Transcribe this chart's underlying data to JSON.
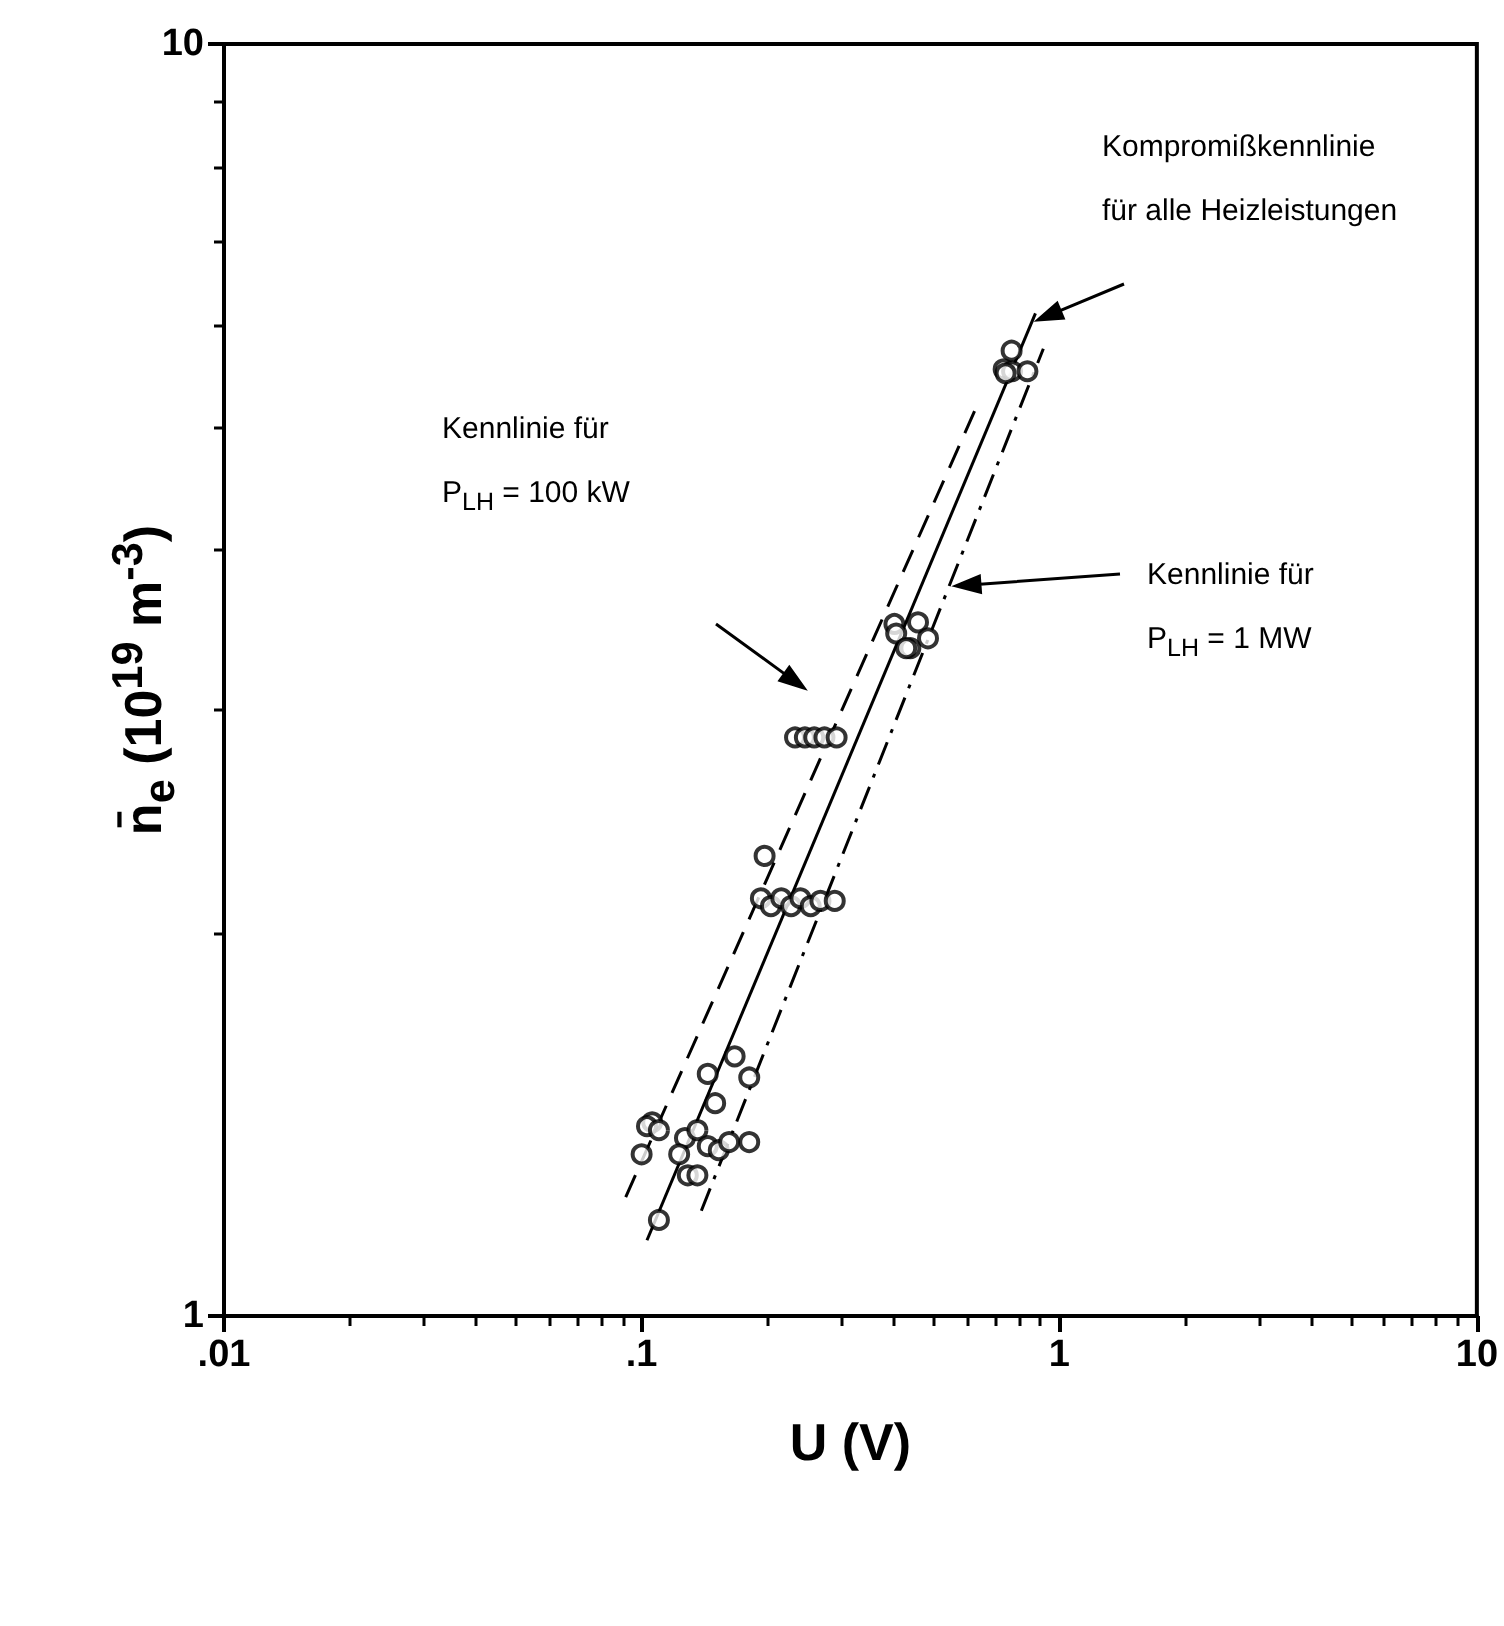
{
  "chart_data": {
    "type": "scatter",
    "xlabel": "U (V)",
    "ylabel": "n̄$_{e}$ (10$^{19}$ m$^{-3}$)",
    "log": "xy",
    "grid": false,
    "xlim": [
      0.01,
      10
    ],
    "xticks": [
      {
        "value": 0.01,
        "label": ".01"
      },
      {
        "value": 0.1,
        "label": ".1"
      },
      1,
      10
    ],
    "ylim": [
      1,
      10
    ],
    "yticks": [
      1,
      10
    ],
    "series": [
      {
        "marker": "circle",
        "color": "#000000",
        "x": [
          0.197,
          0.193,
          0.204,
          0.216,
          0.228,
          0.24,
          0.254,
          0.268,
          0.29,
          0.167,
          0.144,
          0.181,
          0.15,
          0.106,
          0.103,
          0.11,
          0.1,
          0.127,
          0.136,
          0.144,
          0.153,
          0.162,
          0.181,
          0.123,
          0.129,
          0.136,
          0.11,
          0.769,
          0.736,
          0.771,
          0.839,
          0.744,
          0.403,
          0.459,
          0.407,
          0.44,
          0.485,
          0.43,
          0.233,
          0.246,
          0.259,
          0.274,
          0.293
        ],
        "values": [
          2.3,
          2.13,
          2.1,
          2.13,
          2.1,
          2.13,
          2.1,
          2.12,
          2.12,
          1.6,
          1.55,
          1.54,
          1.47,
          1.42,
          1.41,
          1.4,
          1.34,
          1.38,
          1.4,
          1.36,
          1.35,
          1.37,
          1.37,
          1.34,
          1.29,
          1.29,
          1.19,
          5.74,
          5.55,
          5.53,
          5.53,
          5.51,
          3.5,
          3.51,
          3.44,
          3.35,
          3.41,
          3.35,
          2.85,
          2.85,
          2.85,
          2.85,
          2.85
        ]
      },
      {
        "type": "line",
        "marker": "none",
        "line_style": "solid",
        "color": "#000000",
        "x": [
          0.103,
          0.877
        ],
        "values": [
          1.147,
          6.14
        ]
      },
      {
        "type": "line",
        "marker": "none",
        "line_style": "dashed",
        "color": "#000000",
        "x": [
          0.0916,
          0.631
        ],
        "values": [
          1.24,
          5.17
        ]
      },
      {
        "type": "line",
        "marker": "none",
        "line_style": "dashdot",
        "color": "#000000",
        "x": [
          0.139,
          0.916
        ],
        "values": [
          1.21,
          5.76
        ]
      }
    ],
    "annotations": [
      "Kompromißkennlinie\nfür alle Heizleistungen",
      "Kennlinie für\nP$_{LH}$ = 100 kW",
      "Kennlinie für\nP$_{LH}$ = 1 MW"
    ]
  }
}
